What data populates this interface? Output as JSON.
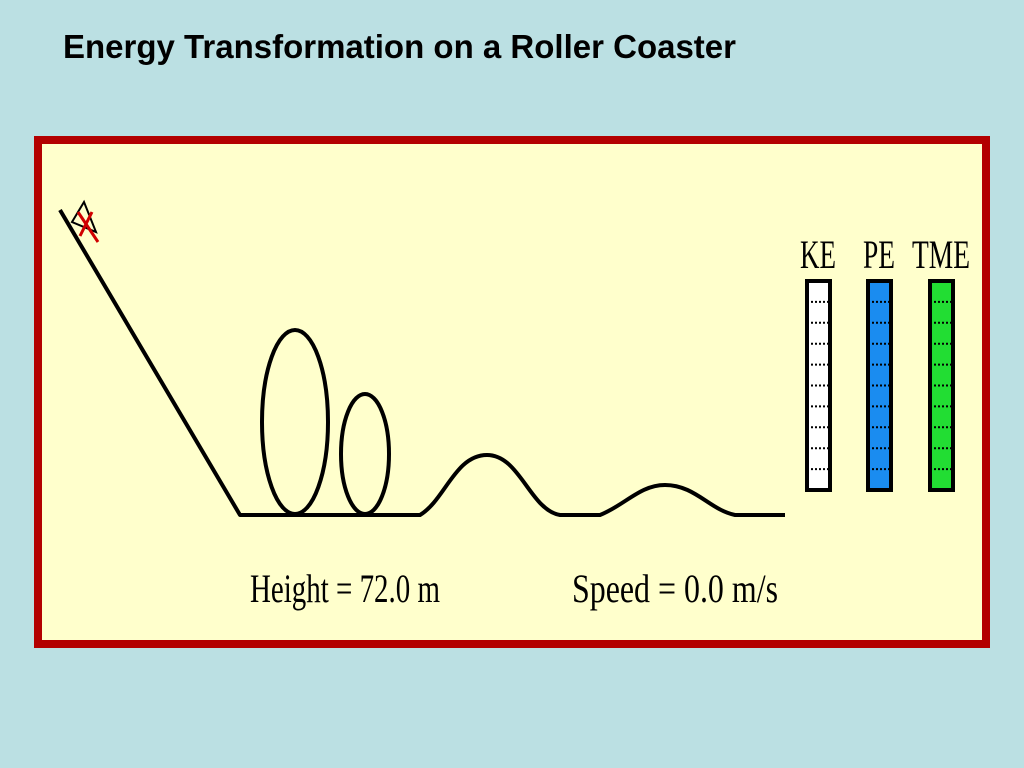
{
  "header": {
    "title": "Energy Transformation on a Roller Coaster"
  },
  "meters": {
    "labels": [
      "KE",
      "PE",
      "TME"
    ]
  },
  "readouts": {
    "height": "Height = 72.0 m",
    "speed": "Speed = 0.0 m/s"
  }
}
